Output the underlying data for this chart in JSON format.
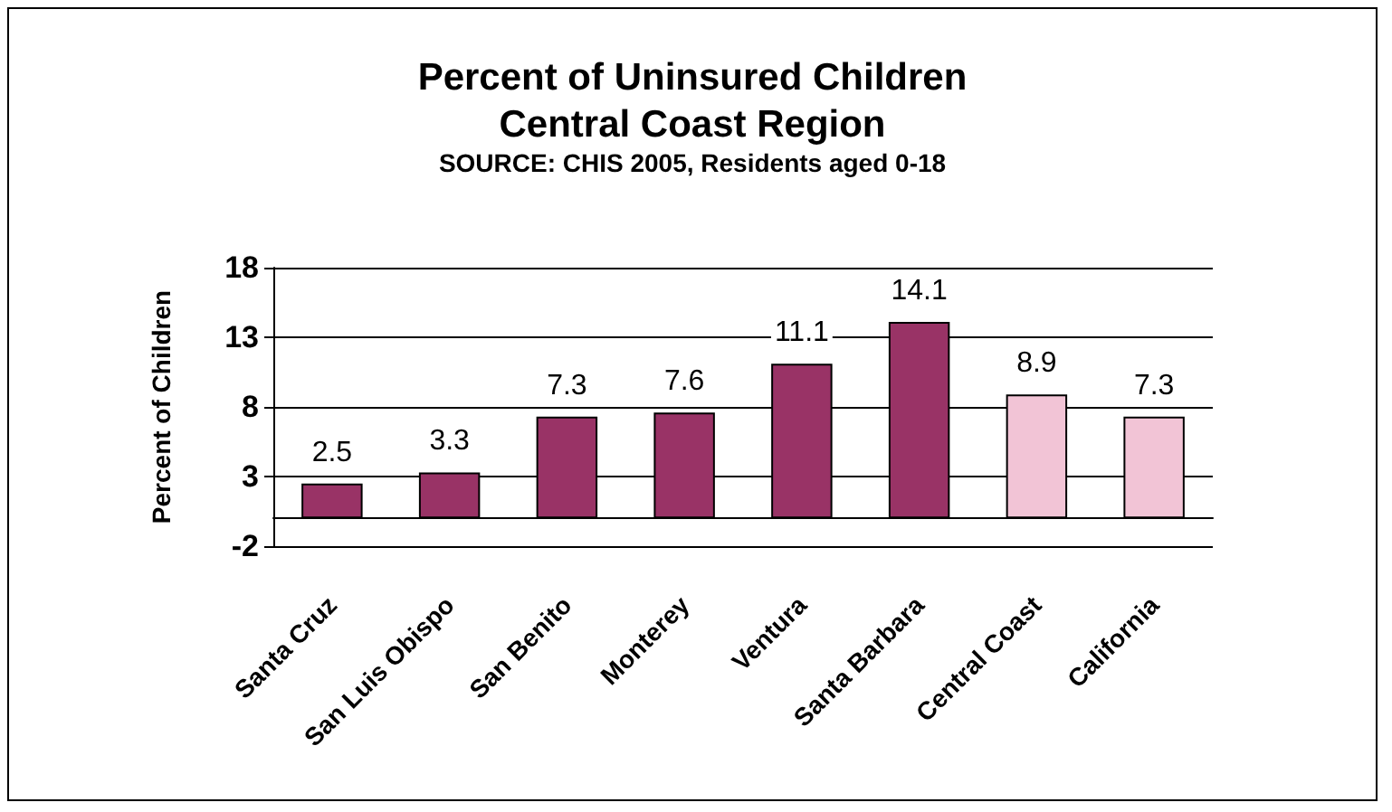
{
  "chart_data": {
    "type": "bar",
    "title": "Percent of Uninsured Children\nCentral Coast Region",
    "subtitle": "SOURCE: CHIS 2005, Residents aged 0-18",
    "ylabel": "Percent of Children",
    "categories": [
      "Santa Cruz",
      "San Luis Obispo",
      "San Benito",
      "Monterey",
      "Ventura",
      "Santa Barbara",
      "Central Coast",
      "California"
    ],
    "values": [
      2.5,
      3.3,
      7.3,
      7.6,
      11.1,
      14.1,
      8.9,
      7.3
    ],
    "colors": [
      "#993366",
      "#993366",
      "#993366",
      "#993366",
      "#993366",
      "#993366",
      "#f2c4d6",
      "#f2c4d6"
    ],
    "ylim": [
      -2,
      18
    ],
    "yticks": [
      -2,
      3,
      8,
      13,
      18
    ],
    "grid": "y",
    "data_labels": true
  }
}
